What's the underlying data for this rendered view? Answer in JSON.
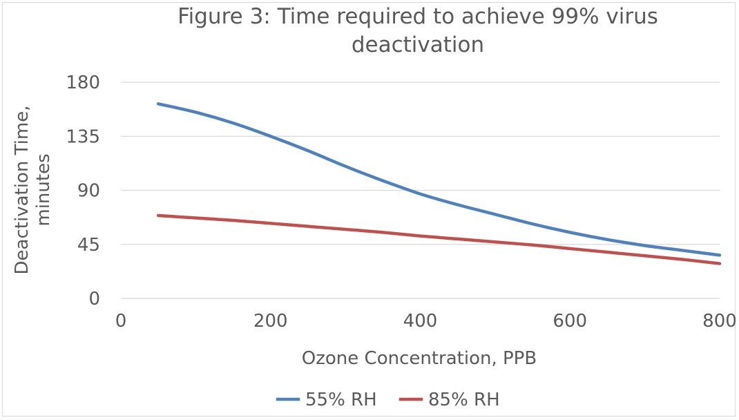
{
  "chart_data": {
    "type": "line",
    "title": "Figure 3: Time required to achieve 99% virus deactivation",
    "xlabel": "Ozone Concentration, PPB",
    "ylabel": "Deactivation Time, minutes",
    "ylabel_lines": [
      "Deactivation Time,",
      "minutes"
    ],
    "xlim": [
      0,
      800
    ],
    "ylim": [
      0,
      180
    ],
    "xticks": [
      0,
      200,
      400,
      600,
      800
    ],
    "yticks": [
      0,
      45,
      90,
      135,
      180
    ],
    "grid": true,
    "legend_position": "bottom",
    "x": [
      50,
      100,
      150,
      200,
      250,
      300,
      350,
      400,
      450,
      500,
      550,
      600,
      650,
      700,
      750,
      800
    ],
    "series": [
      {
        "name": "55% RH",
        "color": "#4f81bd",
        "values": [
          162,
          155,
          146,
          135,
          123,
          110,
          98,
          87,
          78,
          70,
          62,
          55,
          49,
          44,
          40,
          36
        ]
      },
      {
        "name": "85% RH",
        "color": "#c0504d",
        "values": [
          69,
          67,
          65,
          62.5,
          60,
          57.5,
          55,
          52,
          49.5,
          47,
          44.5,
          41.5,
          38.5,
          35.5,
          32.5,
          29
        ]
      }
    ]
  }
}
